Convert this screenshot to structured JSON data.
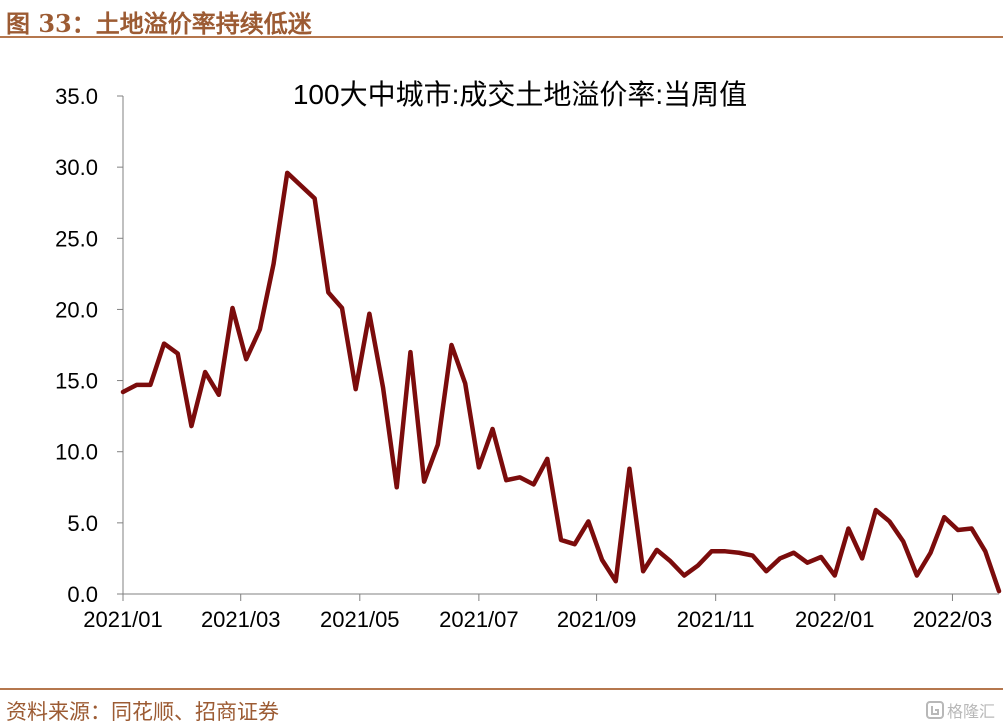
{
  "figure": {
    "caption": "图 33：土地溢价率持续低迷",
    "source": "资料来源：同花顺、招商证券",
    "watermark": "格隆汇"
  },
  "colors": {
    "line": "#7b0c0c",
    "accent": "#9c5b33",
    "rule": "#b5774e",
    "axis": "#808080",
    "text": "#000000"
  },
  "chart_data": {
    "type": "line",
    "title": "100大中城市:成交土地溢价率:当周值",
    "xlabel": "",
    "ylabel": "",
    "ylim": [
      0,
      35
    ],
    "yticks": [
      "0.0",
      "5.0",
      "10.0",
      "15.0",
      "20.0",
      "25.0",
      "30.0",
      "35.0"
    ],
    "grid": false,
    "legend": "none",
    "xticks": [
      "2021/01",
      "2021/03",
      "2021/05",
      "2021/07",
      "2021/09",
      "2021/11",
      "2022/01",
      "2022/03"
    ],
    "series": [
      {
        "values": [
          14.2,
          14.7,
          14.7,
          17.6,
          16.9,
          11.8,
          15.6,
          14.0,
          20.1,
          16.5,
          18.6,
          23.2,
          29.6,
          28.7,
          27.8,
          21.2,
          20.1,
          14.4,
          19.7,
          14.5,
          7.5,
          17.0,
          7.9,
          10.5,
          17.5,
          14.8,
          8.9,
          11.6,
          8.0,
          8.2,
          7.7,
          9.5,
          3.8,
          3.5,
          5.1,
          2.4,
          0.9,
          8.8,
          1.6,
          3.1,
          2.3,
          1.3,
          2.0,
          3.0,
          3.0,
          2.9,
          2.7,
          1.6,
          2.5,
          2.9,
          2.2,
          2.6,
          1.3,
          4.6,
          2.5,
          5.9,
          5.1,
          3.7,
          1.3,
          2.9,
          5.4,
          4.5,
          4.6,
          3.0,
          0.2
        ]
      }
    ]
  }
}
